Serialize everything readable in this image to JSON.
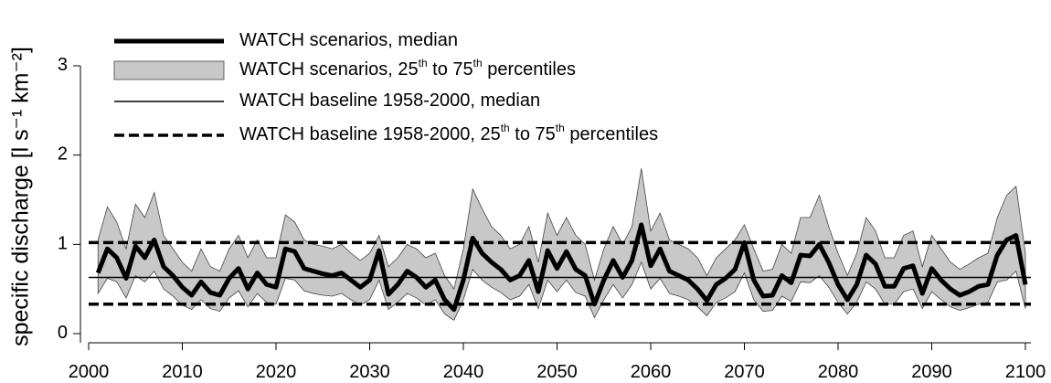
{
  "chart_data": {
    "type": "line",
    "y_label": "specific discharge [l s⁻¹ km⁻²]",
    "xlim": [
      2000,
      2100
    ],
    "xticks": [
      2000,
      2010,
      2020,
      2030,
      2040,
      2050,
      2060,
      2070,
      2080,
      2090,
      2100
    ],
    "ylim": [
      0,
      3
    ],
    "yticks": [
      0,
      1,
      2,
      3
    ],
    "x": [
      2001,
      2002,
      2003,
      2004,
      2005,
      2006,
      2007,
      2008,
      2009,
      2010,
      2011,
      2012,
      2013,
      2014,
      2015,
      2016,
      2017,
      2018,
      2019,
      2020,
      2021,
      2022,
      2023,
      2024,
      2025,
      2026,
      2027,
      2028,
      2029,
      2030,
      2031,
      2032,
      2033,
      2034,
      2035,
      2036,
      2037,
      2038,
      2039,
      2040,
      2041,
      2042,
      2043,
      2044,
      2045,
      2046,
      2047,
      2048,
      2049,
      2050,
      2051,
      2052,
      2053,
      2054,
      2055,
      2056,
      2057,
      2058,
      2059,
      2060,
      2061,
      2062,
      2063,
      2064,
      2065,
      2066,
      2067,
      2068,
      2069,
      2070,
      2071,
      2072,
      2073,
      2074,
      2075,
      2076,
      2077,
      2078,
      2079,
      2080,
      2081,
      2082,
      2083,
      2084,
      2085,
      2086,
      2087,
      2088,
      2089,
      2090,
      2091,
      2092,
      2093,
      2094,
      2095,
      2096,
      2097,
      2098,
      2099,
      2100
    ],
    "series": [
      {
        "name": "WATCH scenarios, median",
        "color": "#000000",
        "values": [
          0.68,
          0.95,
          0.85,
          0.62,
          0.98,
          0.85,
          1.05,
          0.75,
          0.65,
          0.52,
          0.43,
          0.58,
          0.46,
          0.43,
          0.62,
          0.73,
          0.5,
          0.68,
          0.55,
          0.52,
          0.95,
          0.92,
          0.73,
          0.7,
          0.67,
          0.65,
          0.68,
          0.6,
          0.52,
          0.6,
          0.93,
          0.44,
          0.55,
          0.7,
          0.63,
          0.52,
          0.6,
          0.38,
          0.27,
          0.6,
          1.07,
          0.9,
          0.8,
          0.72,
          0.6,
          0.65,
          0.82,
          0.47,
          0.93,
          0.73,
          0.92,
          0.72,
          0.65,
          0.33,
          0.6,
          0.82,
          0.63,
          0.82,
          1.22,
          0.76,
          0.95,
          0.7,
          0.65,
          0.6,
          0.5,
          0.37,
          0.55,
          0.62,
          0.72,
          1.02,
          0.6,
          0.42,
          0.43,
          0.65,
          0.57,
          0.88,
          0.87,
          1.0,
          0.8,
          0.55,
          0.38,
          0.55,
          0.88,
          0.78,
          0.53,
          0.53,
          0.73,
          0.76,
          0.45,
          0.73,
          0.6,
          0.5,
          0.43,
          0.47,
          0.53,
          0.55,
          0.88,
          1.05,
          1.1,
          0.55
        ]
      }
    ],
    "band": {
      "name": "WATCH scenarios, 25th to 75th percentiles",
      "color": "#c8c8c8",
      "upper": [
        1.05,
        1.42,
        1.25,
        0.95,
        1.45,
        1.3,
        1.58,
        1.1,
        0.95,
        0.8,
        0.7,
        0.95,
        0.75,
        0.7,
        0.95,
        1.1,
        0.85,
        1.05,
        0.85,
        0.85,
        1.33,
        1.25,
        1.05,
        1.0,
        0.98,
        0.95,
        1.0,
        0.9,
        0.82,
        0.9,
        1.1,
        0.75,
        0.85,
        1.0,
        0.95,
        0.85,
        0.9,
        0.65,
        0.5,
        0.95,
        1.62,
        1.4,
        1.2,
        1.1,
        0.95,
        1.0,
        1.2,
        0.8,
        1.35,
        1.1,
        1.3,
        1.1,
        1.0,
        0.6,
        0.95,
        1.2,
        1.0,
        1.2,
        1.85,
        1.15,
        1.35,
        1.05,
        1.0,
        0.95,
        0.85,
        0.65,
        0.85,
        0.95,
        1.05,
        1.22,
        0.95,
        0.7,
        0.72,
        1.0,
        0.9,
        1.3,
        1.3,
        1.55,
        1.2,
        0.9,
        0.65,
        0.9,
        1.3,
        1.15,
        0.85,
        0.85,
        1.1,
        1.15,
        0.75,
        1.1,
        0.95,
        0.8,
        0.72,
        0.78,
        0.85,
        0.9,
        1.3,
        1.55,
        1.65,
        0.9
      ],
      "lower": [
        0.45,
        0.62,
        0.58,
        0.4,
        0.65,
        0.58,
        0.7,
        0.5,
        0.42,
        0.32,
        0.27,
        0.38,
        0.28,
        0.25,
        0.4,
        0.48,
        0.3,
        0.45,
        0.35,
        0.33,
        0.62,
        0.6,
        0.48,
        0.45,
        0.43,
        0.42,
        0.45,
        0.38,
        0.32,
        0.38,
        0.6,
        0.27,
        0.35,
        0.45,
        0.4,
        0.32,
        0.38,
        0.22,
        0.15,
        0.38,
        0.72,
        0.6,
        0.52,
        0.46,
        0.38,
        0.42,
        0.55,
        0.28,
        0.6,
        0.47,
        0.6,
        0.46,
        0.42,
        0.18,
        0.38,
        0.55,
        0.4,
        0.55,
        0.8,
        0.5,
        0.62,
        0.45,
        0.42,
        0.38,
        0.3,
        0.2,
        0.35,
        0.4,
        0.47,
        0.68,
        0.38,
        0.25,
        0.26,
        0.42,
        0.36,
        0.58,
        0.57,
        0.65,
        0.52,
        0.35,
        0.22,
        0.35,
        0.58,
        0.5,
        0.33,
        0.33,
        0.47,
        0.5,
        0.28,
        0.47,
        0.38,
        0.3,
        0.26,
        0.29,
        0.33,
        0.35,
        0.58,
        0.6,
        0.7,
        0.28
      ]
    },
    "baselines": [
      {
        "name": "WATCH baseline 1958-2000, median",
        "values": [
          0.63
        ],
        "style": "solid"
      },
      {
        "name": "WATCH baseline 1958-2000, 25th to 75th percentiles",
        "values": [
          0.33,
          1.02
        ],
        "style": "dashed"
      }
    ]
  }
}
